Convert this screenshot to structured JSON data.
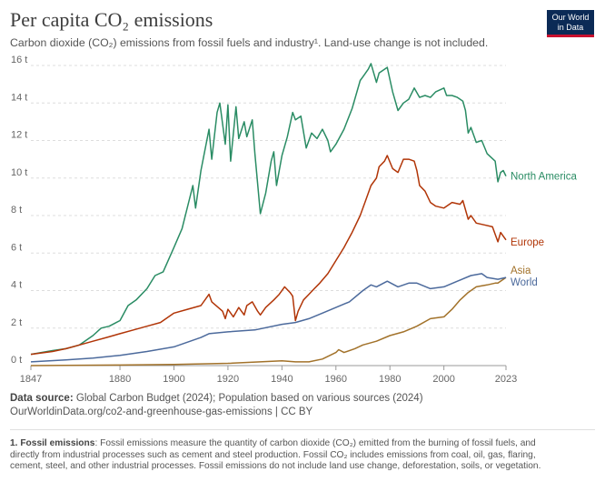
{
  "header": {
    "title": "Per capita CO₂ emissions",
    "subtitle": "Carbon dioxide (CO₂) emissions from fossil fuels and industry¹. Land-use change is not included."
  },
  "logo": {
    "line1": "Our World",
    "line2": "in Data"
  },
  "footer": {
    "source_label": "Data source:",
    "source_text": "Global Carbon Budget (2024); Population based on various sources (2024)",
    "url": "OurWorldinData.org/co2-and-greenhouse-gas-emissions | CC BY",
    "note_label": "1. Fossil emissions",
    "note_text": ": Fossil emissions measure the quantity of carbon dioxide (CO₂) emitted from the burning of fossil fuels, and directly from industrial processes such as cement and steel production. Fossil CO₂ includes emissions from coal, oil, gas, flaring, cement, steel, and other industrial processes. Fossil emissions do not include land use change, deforestation, soils, or vegetation."
  },
  "chart_data": {
    "type": "line",
    "title": "Per capita CO₂ emissions",
    "xlabel": "",
    "ylabel": "",
    "xlim": [
      1847,
      2023
    ],
    "ylim": [
      0,
      16
    ],
    "x_ticks": [
      1847,
      1880,
      1900,
      1920,
      1940,
      1960,
      1980,
      2000,
      2023
    ],
    "y_ticks": [
      0,
      2,
      4,
      6,
      8,
      10,
      12,
      14,
      16
    ],
    "y_tick_labels": [
      "0 t",
      "2 t",
      "4 t",
      "6 t",
      "8 t",
      "10 t",
      "12 t",
      "14 t",
      "16 t"
    ],
    "grid": "horizontal dashed",
    "legend": "labels at line ends (right)",
    "series": [
      {
        "name": "North America",
        "color": "#2a8c64",
        "points": [
          [
            1847,
            0.6
          ],
          [
            1855,
            0.8
          ],
          [
            1860,
            0.9
          ],
          [
            1865,
            1.1
          ],
          [
            1870,
            1.6
          ],
          [
            1873,
            2.0
          ],
          [
            1876,
            2.1
          ],
          [
            1880,
            2.4
          ],
          [
            1883,
            3.2
          ],
          [
            1886,
            3.5
          ],
          [
            1890,
            4.1
          ],
          [
            1893,
            4.8
          ],
          [
            1896,
            5.0
          ],
          [
            1900,
            6.3
          ],
          [
            1903,
            7.3
          ],
          [
            1907,
            9.6
          ],
          [
            1908,
            8.4
          ],
          [
            1910,
            10.4
          ],
          [
            1913,
            12.6
          ],
          [
            1914,
            11.0
          ],
          [
            1916,
            13.5
          ],
          [
            1917,
            14.0
          ],
          [
            1919,
            11.8
          ],
          [
            1920,
            13.9
          ],
          [
            1921,
            10.9
          ],
          [
            1923,
            13.8
          ],
          [
            1924,
            12.1
          ],
          [
            1926,
            13.0
          ],
          [
            1927,
            12.2
          ],
          [
            1929,
            13.1
          ],
          [
            1930,
            11.3
          ],
          [
            1932,
            8.1
          ],
          [
            1934,
            9.2
          ],
          [
            1936,
            10.9
          ],
          [
            1937,
            11.4
          ],
          [
            1938,
            9.6
          ],
          [
            1940,
            11.2
          ],
          [
            1942,
            12.2
          ],
          [
            1944,
            13.5
          ],
          [
            1945,
            13.1
          ],
          [
            1947,
            13.3
          ],
          [
            1949,
            11.6
          ],
          [
            1951,
            12.4
          ],
          [
            1953,
            12.1
          ],
          [
            1955,
            12.6
          ],
          [
            1957,
            12.0
          ],
          [
            1958,
            11.4
          ],
          [
            1960,
            11.8
          ],
          [
            1963,
            12.6
          ],
          [
            1966,
            13.7
          ],
          [
            1969,
            15.2
          ],
          [
            1970,
            15.4
          ],
          [
            1972,
            15.8
          ],
          [
            1973,
            16.1
          ],
          [
            1975,
            15.1
          ],
          [
            1976,
            15.6
          ],
          [
            1979,
            15.9
          ],
          [
            1981,
            14.6
          ],
          [
            1983,
            13.6
          ],
          [
            1985,
            14.0
          ],
          [
            1987,
            14.2
          ],
          [
            1989,
            14.8
          ],
          [
            1991,
            14.3
          ],
          [
            1993,
            14.4
          ],
          [
            1995,
            14.3
          ],
          [
            1997,
            14.6
          ],
          [
            2000,
            14.8
          ],
          [
            2001,
            14.4
          ],
          [
            2003,
            14.4
          ],
          [
            2005,
            14.3
          ],
          [
            2007,
            14.1
          ],
          [
            2008,
            13.6
          ],
          [
            2009,
            12.4
          ],
          [
            2010,
            12.7
          ],
          [
            2012,
            11.9
          ],
          [
            2014,
            12.0
          ],
          [
            2016,
            11.3
          ],
          [
            2019,
            10.9
          ],
          [
            2020,
            9.8
          ],
          [
            2021,
            10.3
          ],
          [
            2022,
            10.4
          ],
          [
            2023,
            10.1
          ]
        ]
      },
      {
        "name": "Europe",
        "color": "#b13507",
        "points": [
          [
            1847,
            0.6
          ],
          [
            1855,
            0.75
          ],
          [
            1860,
            0.9
          ],
          [
            1865,
            1.1
          ],
          [
            1870,
            1.3
          ],
          [
            1875,
            1.5
          ],
          [
            1880,
            1.7
          ],
          [
            1885,
            1.9
          ],
          [
            1890,
            2.1
          ],
          [
            1895,
            2.3
          ],
          [
            1900,
            2.8
          ],
          [
            1905,
            3.0
          ],
          [
            1910,
            3.2
          ],
          [
            1913,
            3.8
          ],
          [
            1914,
            3.4
          ],
          [
            1918,
            2.9
          ],
          [
            1919,
            2.5
          ],
          [
            1920,
            3.0
          ],
          [
            1922,
            2.6
          ],
          [
            1924,
            3.1
          ],
          [
            1926,
            2.7
          ],
          [
            1927,
            3.2
          ],
          [
            1929,
            3.4
          ],
          [
            1931,
            2.9
          ],
          [
            1932,
            2.7
          ],
          [
            1934,
            3.1
          ],
          [
            1937,
            3.5
          ],
          [
            1939,
            3.8
          ],
          [
            1941,
            4.2
          ],
          [
            1943,
            3.9
          ],
          [
            1944,
            3.7
          ],
          [
            1945,
            2.4
          ],
          [
            1946,
            2.9
          ],
          [
            1948,
            3.5
          ],
          [
            1950,
            3.8
          ],
          [
            1952,
            4.1
          ],
          [
            1954,
            4.4
          ],
          [
            1957,
            4.9
          ],
          [
            1960,
            5.6
          ],
          [
            1963,
            6.3
          ],
          [
            1966,
            7.1
          ],
          [
            1969,
            8.0
          ],
          [
            1971,
            8.8
          ],
          [
            1973,
            9.6
          ],
          [
            1975,
            10.0
          ],
          [
            1976,
            10.6
          ],
          [
            1978,
            10.9
          ],
          [
            1979,
            11.2
          ],
          [
            1981,
            10.5
          ],
          [
            1983,
            10.3
          ],
          [
            1985,
            11.0
          ],
          [
            1987,
            11.0
          ],
          [
            1989,
            10.9
          ],
          [
            1990,
            10.4
          ],
          [
            1991,
            9.6
          ],
          [
            1993,
            9.3
          ],
          [
            1995,
            8.7
          ],
          [
            1997,
            8.5
          ],
          [
            2000,
            8.4
          ],
          [
            2003,
            8.7
          ],
          [
            2006,
            8.6
          ],
          [
            2007,
            8.8
          ],
          [
            2009,
            7.8
          ],
          [
            2010,
            8.0
          ],
          [
            2012,
            7.6
          ],
          [
            2015,
            7.5
          ],
          [
            2018,
            7.4
          ],
          [
            2019,
            7.0
          ],
          [
            2020,
            6.6
          ],
          [
            2021,
            7.1
          ],
          [
            2022,
            6.9
          ],
          [
            2023,
            6.7
          ]
        ]
      },
      {
        "name": "Asia",
        "color": "#a2722a",
        "points": [
          [
            1847,
            0.0
          ],
          [
            1880,
            0.03
          ],
          [
            1900,
            0.06
          ],
          [
            1920,
            0.12
          ],
          [
            1940,
            0.25
          ],
          [
            1945,
            0.2
          ],
          [
            1950,
            0.2
          ],
          [
            1955,
            0.35
          ],
          [
            1960,
            0.7
          ],
          [
            1961,
            0.85
          ],
          [
            1963,
            0.7
          ],
          [
            1967,
            0.9
          ],
          [
            1970,
            1.1
          ],
          [
            1975,
            1.3
          ],
          [
            1980,
            1.6
          ],
          [
            1985,
            1.8
          ],
          [
            1990,
            2.1
          ],
          [
            1995,
            2.5
          ],
          [
            2000,
            2.6
          ],
          [
            2003,
            3.0
          ],
          [
            2006,
            3.5
          ],
          [
            2009,
            3.9
          ],
          [
            2012,
            4.2
          ],
          [
            2016,
            4.3
          ],
          [
            2019,
            4.4
          ],
          [
            2020,
            4.4
          ],
          [
            2023,
            4.7
          ]
        ]
      },
      {
        "name": "World",
        "color": "#4c6a9c",
        "points": [
          [
            1847,
            0.2
          ],
          [
            1860,
            0.3
          ],
          [
            1870,
            0.4
          ],
          [
            1880,
            0.55
          ],
          [
            1890,
            0.75
          ],
          [
            1900,
            1.0
          ],
          [
            1910,
            1.5
          ],
          [
            1913,
            1.7
          ],
          [
            1920,
            1.8
          ],
          [
            1930,
            1.9
          ],
          [
            1940,
            2.2
          ],
          [
            1945,
            2.3
          ],
          [
            1950,
            2.5
          ],
          [
            1955,
            2.8
          ],
          [
            1960,
            3.1
          ],
          [
            1965,
            3.4
          ],
          [
            1970,
            4.0
          ],
          [
            1973,
            4.3
          ],
          [
            1975,
            4.2
          ],
          [
            1979,
            4.5
          ],
          [
            1983,
            4.2
          ],
          [
            1987,
            4.4
          ],
          [
            1990,
            4.4
          ],
          [
            1995,
            4.1
          ],
          [
            2000,
            4.2
          ],
          [
            2005,
            4.5
          ],
          [
            2010,
            4.8
          ],
          [
            2014,
            4.9
          ],
          [
            2016,
            4.7
          ],
          [
            2020,
            4.6
          ],
          [
            2023,
            4.7
          ]
        ]
      }
    ]
  }
}
